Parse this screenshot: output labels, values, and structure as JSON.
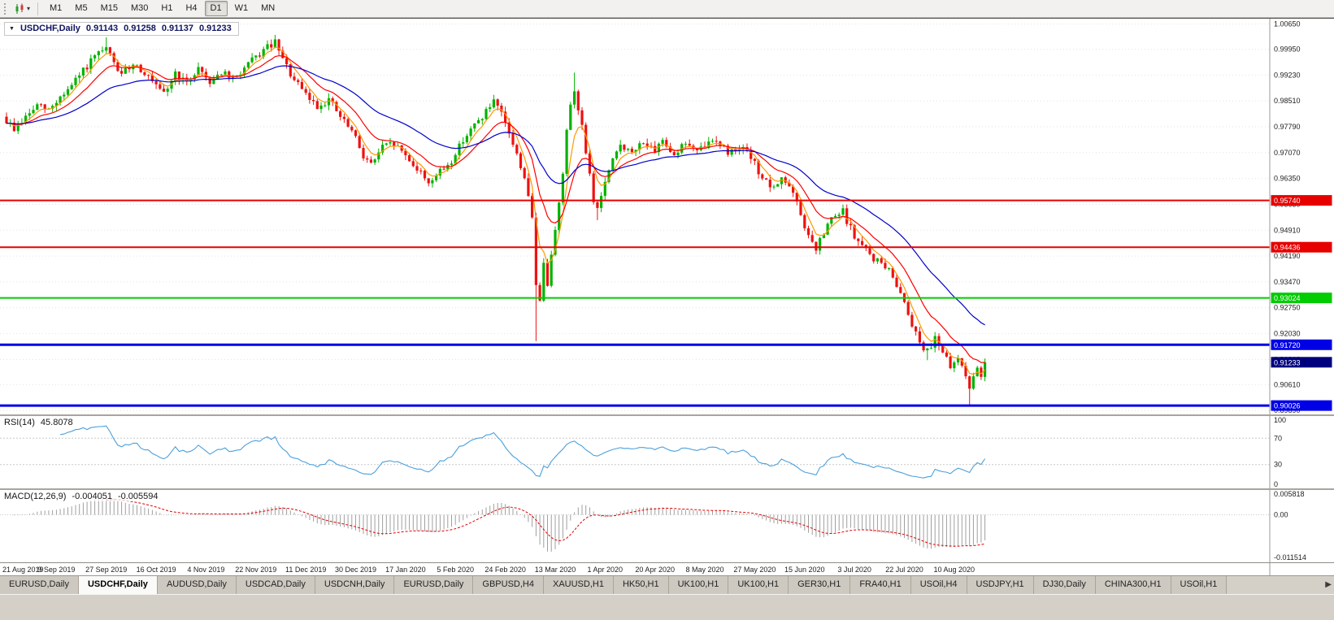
{
  "toolbar": {
    "timeframes": [
      "M1",
      "M5",
      "M15",
      "M30",
      "H1",
      "H4",
      "D1",
      "W1",
      "MN"
    ],
    "active_timeframe": "D1",
    "dropdown_glyph": "▾"
  },
  "chart": {
    "symbol_label": "USDCHF,Daily",
    "dropdown_glyph": "▼",
    "ohlc": {
      "open": "0.91143",
      "high": "0.91258",
      "low": "0.91137",
      "close": "0.91233"
    },
    "price_axis": {
      "labels": [
        "1.00650",
        "0.99950",
        "0.99230",
        "0.98510",
        "0.97790",
        "0.97070",
        "0.96350",
        "0.95630",
        "0.94910",
        "0.94190",
        "0.93470",
        "0.92750",
        "0.92030",
        "0.91310",
        "0.90610",
        "0.89890"
      ],
      "current_price": "0.91233"
    }
  },
  "rsi": {
    "title": "RSI(14)",
    "value": "45.8078",
    "axis": [
      {
        "v": 100,
        "label": "100"
      },
      {
        "v": 70,
        "label": "70"
      },
      {
        "v": 30,
        "label": "30"
      },
      {
        "v": 0,
        "label": "0"
      }
    ],
    "levels": [
      70,
      30
    ],
    "line_color": "#4aa0dc"
  },
  "macd": {
    "title": "MACD(12,26,9)",
    "value_macd": "-0.004051",
    "value_signal": "-0.005594",
    "axis": [
      {
        "v": 0.005818,
        "label": "0.005818"
      },
      {
        "v": 0,
        "label": "0.00"
      },
      {
        "v": -0.011514,
        "label": "-0.011514"
      }
    ],
    "axis_max": 0.005818,
    "axis_min": -0.011514,
    "histogram_color": "#9f9f9f",
    "signal_color": "#e00000"
  },
  "tabs": {
    "items": [
      "EURUSD,Daily",
      "USDCHF,Daily",
      "AUDUSD,Daily",
      "USDCAD,Daily",
      "USDCNH,Daily",
      "EURUSD,Daily",
      "GBPUSD,H4",
      "XAUUSD,H1",
      "HK50,H1",
      "UK100,H1",
      "UK100,H1",
      "GER30,H1",
      "FRA40,H1",
      "USOil,H4",
      "USDJPY,H1",
      "DJ30,Daily",
      "CHINA300,H1",
      "USOil,H1"
    ],
    "active_index": 1,
    "scroll_right_glyph": "▶"
  },
  "chart_data": {
    "type": "candlestick",
    "symbol": "USDCHF",
    "timeframe": "Daily",
    "last_ohlc": {
      "open": 0.91143,
      "high": 0.91258,
      "low": 0.91137,
      "close": 0.91233
    },
    "price_range": {
      "max": 1.008,
      "min": 0.8978
    },
    "candle_count": 256,
    "noise_seed": 9,
    "colors": {
      "up": "#00b300",
      "down": "#ee1111",
      "price_tag": "#00007f"
    },
    "close_anchors": [
      [
        0,
        0.9795
      ],
      [
        2,
        0.9772
      ],
      [
        5,
        0.9805
      ],
      [
        8,
        0.9838
      ],
      [
        11,
        0.9825
      ],
      [
        14,
        0.9862
      ],
      [
        17,
        0.9892
      ],
      [
        20,
        0.9935
      ],
      [
        23,
        0.9972
      ],
      [
        26,
        0.9995
      ],
      [
        28,
        0.9958
      ],
      [
        30,
        0.992
      ],
      [
        33,
        0.9958
      ],
      [
        36,
        0.993
      ],
      [
        39,
        0.9888
      ],
      [
        41,
        0.9868
      ],
      [
        44,
        0.9928
      ],
      [
        47,
        0.9898
      ],
      [
        50,
        0.9945
      ],
      [
        53,
        0.9905
      ],
      [
        56,
        0.9932
      ],
      [
        59,
        0.9908
      ],
      [
        62,
        0.9942
      ],
      [
        65,
        0.9972
      ],
      [
        68,
        1.0
      ],
      [
        70,
        1.0012
      ],
      [
        72,
        0.9965
      ],
      [
        75,
        0.9906
      ],
      [
        78,
        0.9868
      ],
      [
        81,
        0.9835
      ],
      [
        84,
        0.9856
      ],
      [
        87,
        0.9806
      ],
      [
        90,
        0.9766
      ],
      [
        93,
        0.97
      ],
      [
        95,
        0.9674
      ],
      [
        98,
        0.9722
      ],
      [
        101,
        0.9732
      ],
      [
        104,
        0.97
      ],
      [
        107,
        0.9662
      ],
      [
        110,
        0.9626
      ],
      [
        113,
        0.9652
      ],
      [
        116,
        0.9684
      ],
      [
        119,
        0.9745
      ],
      [
        122,
        0.9782
      ],
      [
        125,
        0.9822
      ],
      [
        127,
        0.9846
      ],
      [
        129,
        0.9812
      ],
      [
        131,
        0.9762
      ],
      [
        133,
        0.97
      ],
      [
        135,
        0.964
      ],
      [
        137,
        0.952
      ],
      [
        138,
        0.934
      ],
      [
        139,
        0.9302
      ],
      [
        140,
        0.9392
      ],
      [
        141,
        0.9344
      ],
      [
        142,
        0.9432
      ],
      [
        143,
        0.9502
      ],
      [
        144,
        0.9562
      ],
      [
        145,
        0.9652
      ],
      [
        146,
        0.9762
      ],
      [
        147,
        0.985
      ],
      [
        148,
        0.9878
      ],
      [
        149,
        0.9822
      ],
      [
        150,
        0.9792
      ],
      [
        151,
        0.9702
      ],
      [
        152,
        0.9642
      ],
      [
        153,
        0.9572
      ],
      [
        154,
        0.9552
      ],
      [
        156,
        0.9622
      ],
      [
        158,
        0.9682
      ],
      [
        160,
        0.9732
      ],
      [
        163,
        0.9702
      ],
      [
        166,
        0.9742
      ],
      [
        169,
        0.9702
      ],
      [
        171,
        0.9746
      ],
      [
        174,
        0.9702
      ],
      [
        177,
        0.9736
      ],
      [
        180,
        0.9706
      ],
      [
        182,
        0.9726
      ],
      [
        185,
        0.9746
      ],
      [
        188,
        0.9706
      ],
      [
        191,
        0.9726
      ],
      [
        194,
        0.9692
      ],
      [
        196,
        0.9656
      ],
      [
        198,
        0.9622
      ],
      [
        200,
        0.9602
      ],
      [
        202,
        0.9642
      ],
      [
        205,
        0.9592
      ],
      [
        207,
        0.9532
      ],
      [
        209,
        0.9472
      ],
      [
        211,
        0.9436
      ],
      [
        213,
        0.9482
      ],
      [
        215,
        0.9522
      ],
      [
        218,
        0.9542
      ],
      [
        221,
        0.9472
      ],
      [
        223,
        0.9446
      ],
      [
        226,
        0.9412
      ],
      [
        229,
        0.9392
      ],
      [
        232,
        0.9342
      ],
      [
        234,
        0.9292
      ],
      [
        236,
        0.9232
      ],
      [
        238,
        0.9182
      ],
      [
        240,
        0.9152
      ],
      [
        242,
        0.9196
      ],
      [
        244,
        0.9156
      ],
      [
        246,
        0.9102
      ],
      [
        248,
        0.9136
      ],
      [
        250,
        0.9092
      ],
      [
        251,
        0.9052
      ],
      [
        252,
        0.9076
      ],
      [
        253,
        0.9102
      ],
      [
        254,
        0.9086
      ],
      [
        255,
        0.91233
      ]
    ],
    "wick_overrides": [
      {
        "i": 26,
        "high": 1.0028
      },
      {
        "i": 70,
        "high": 1.0035
      },
      {
        "i": 110,
        "low": 0.9613
      },
      {
        "i": 127,
        "high": 0.9868
      },
      {
        "i": 138,
        "low": 0.9182
      },
      {
        "i": 148,
        "high": 0.993
      },
      {
        "i": 154,
        "low": 0.9519
      },
      {
        "i": 211,
        "low": 0.9424
      },
      {
        "i": 240,
        "low": 0.9129
      },
      {
        "i": 251,
        "low": 0.9
      }
    ],
    "moving_averages": [
      {
        "period": 5,
        "color": "#ff9900"
      },
      {
        "period": 13,
        "color": "#ff0000"
      },
      {
        "period": 34,
        "color": "#0000cc"
      }
    ],
    "horizontal_levels": [
      {
        "value": 0.9574,
        "label": "0.95740",
        "color": "#e60000",
        "width": 2
      },
      {
        "value": 0.94436,
        "label": "0.94436",
        "color": "#e60000",
        "width": 2
      },
      {
        "value": 0.93024,
        "label": "0.93024",
        "color": "#00cc00",
        "width": 2
      },
      {
        "value": 0.9172,
        "label": "0.91720",
        "color": "#0000e6",
        "width": 3
      },
      {
        "value": 0.90026,
        "label": "0.90026",
        "color": "#0000e6",
        "width": 3
      }
    ],
    "x_tick_labels": [
      "21 Aug 2019",
      "9 Sep 2019",
      "27 Sep 2019",
      "16 Oct 2019",
      "4 Nov 2019",
      "22 Nov 2019",
      "11 Dec 2019",
      "30 Dec 2019",
      "17 Jan 2020",
      "5 Feb 2020",
      "24 Feb 2020",
      "13 Mar 2020",
      "1 Apr 2020",
      "20 Apr 2020",
      "8 May 2020",
      "27 May 2020",
      "15 Jun 2020",
      "3 Jul 2020",
      "22 Jul 2020",
      "10 Aug 2020"
    ],
    "candles_per_tick": 13,
    "indicators": [
      {
        "name": "RSI",
        "period": 14,
        "last_value": 45.8078,
        "levels": [
          70,
          30
        ],
        "range": [
          0,
          100
        ]
      },
      {
        "name": "MACD",
        "params": [
          12,
          26,
          9
        ],
        "last_macd": -0.004051,
        "last_signal": -0.005594,
        "axis_max": 0.005818,
        "axis_min": -0.011514
      }
    ]
  }
}
